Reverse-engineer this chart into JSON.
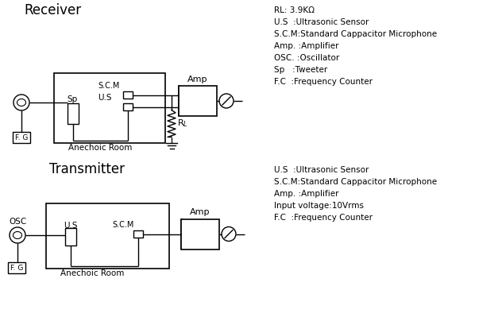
{
  "title_receiver": "Receiver",
  "title_transmitter": "Transmitter",
  "legend_receiver": [
    "RL: 3.9KΩ",
    "U.S  :Ultrasonic Sensor",
    "S.C.M:Standard Cappacitor Microphone",
    "Amp. :Amplifier",
    "OSC. :Oscillator",
    "Sp   :Tweeter",
    "F.C  :Frequency Counter"
  ],
  "legend_transmitter": [
    "U.S  :Ultrasonic Sensor",
    "S.C.M:Standard Cappacitor Microphone",
    "Amp. :Amplifier",
    "Input voltage:10Vrms",
    "F.C  :Frequency Counter"
  ],
  "bg_color": "#ffffff",
  "line_color": "#000000"
}
